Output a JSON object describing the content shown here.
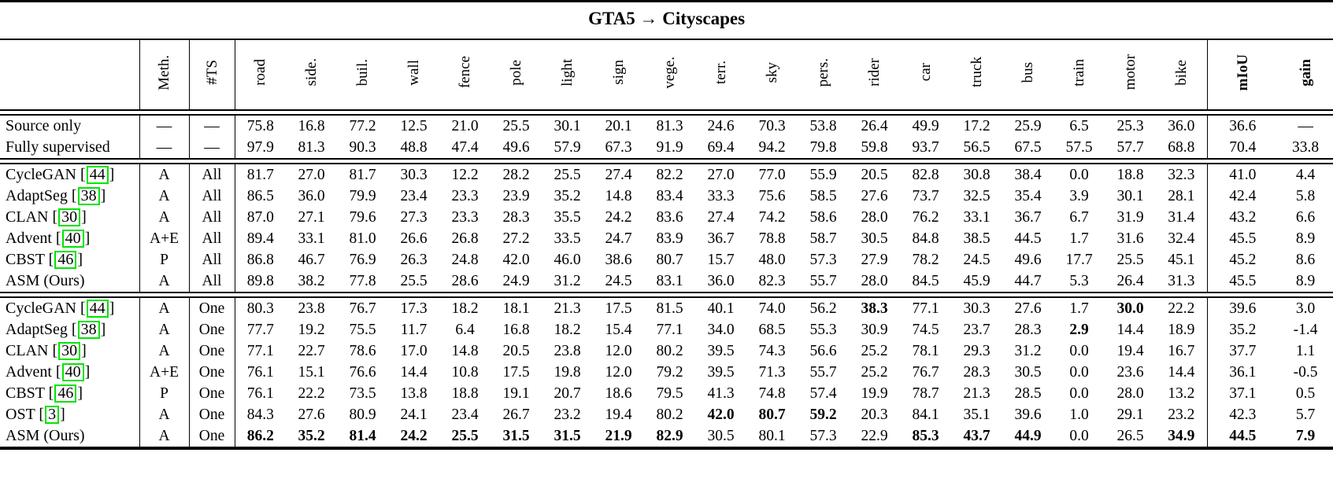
{
  "table": {
    "title": "GTA5 → Cityscapes",
    "accent_colors": {
      "citation_box_border": "#00e400",
      "text": "#000000",
      "background": "#ffffff"
    },
    "columns": {
      "method_header": "",
      "meth": "Meth.",
      "ts": "#TS",
      "classes": [
        "road",
        "side.",
        "buil.",
        "wall",
        "fence",
        "pole",
        "light",
        "sign",
        "vege.",
        "terr.",
        "sky",
        "pers.",
        "rider",
        "car",
        "truck",
        "bus",
        "train",
        "motor",
        "bike"
      ],
      "miou": "mIoU",
      "gain": "gain"
    },
    "blocks": [
      {
        "rows": [
          {
            "method": "Source only",
            "citation": null,
            "meth": "—",
            "ts": "—",
            "values": [
              "75.8",
              "16.8",
              "77.2",
              "12.5",
              "21.0",
              "25.5",
              "30.1",
              "20.1",
              "81.3",
              "24.6",
              "70.3",
              "53.8",
              "26.4",
              "49.9",
              "17.2",
              "25.9",
              "6.5",
              "25.3",
              "36.0"
            ],
            "miou": "36.6",
            "gain": "—",
            "bold": [],
            "bold_miou": false,
            "bold_gain": false
          },
          {
            "method": "Fully supervised",
            "citation": null,
            "meth": "—",
            "ts": "—",
            "values": [
              "97.9",
              "81.3",
              "90.3",
              "48.8",
              "47.4",
              "49.6",
              "57.9",
              "67.3",
              "91.9",
              "69.4",
              "94.2",
              "79.8",
              "59.8",
              "93.7",
              "56.5",
              "67.5",
              "57.5",
              "57.7",
              "68.8"
            ],
            "miou": "70.4",
            "gain": "33.8",
            "bold": [],
            "bold_miou": false,
            "bold_gain": false
          }
        ]
      },
      {
        "rows": [
          {
            "method": "CycleGAN",
            "citation": "44",
            "meth": "A",
            "ts": "All",
            "values": [
              "81.7",
              "27.0",
              "81.7",
              "30.3",
              "12.2",
              "28.2",
              "25.5",
              "27.4",
              "82.2",
              "27.0",
              "77.0",
              "55.9",
              "20.5",
              "82.8",
              "30.8",
              "38.4",
              "0.0",
              "18.8",
              "32.3"
            ],
            "miou": "41.0",
            "gain": "4.4",
            "bold": [],
            "bold_miou": false,
            "bold_gain": false
          },
          {
            "method": "AdaptSeg",
            "citation": "38",
            "meth": "A",
            "ts": "All",
            "values": [
              "86.5",
              "36.0",
              "79.9",
              "23.4",
              "23.3",
              "23.9",
              "35.2",
              "14.8",
              "83.4",
              "33.3",
              "75.6",
              "58.5",
              "27.6",
              "73.7",
              "32.5",
              "35.4",
              "3.9",
              "30.1",
              "28.1"
            ],
            "miou": "42.4",
            "gain": "5.8",
            "bold": [],
            "bold_miou": false,
            "bold_gain": false
          },
          {
            "method": "CLAN",
            "citation": "30",
            "meth": "A",
            "ts": "All",
            "values": [
              "87.0",
              "27.1",
              "79.6",
              "27.3",
              "23.3",
              "28.3",
              "35.5",
              "24.2",
              "83.6",
              "27.4",
              "74.2",
              "58.6",
              "28.0",
              "76.2",
              "33.1",
              "36.7",
              "6.7",
              "31.9",
              "31.4"
            ],
            "miou": "43.2",
            "gain": "6.6",
            "bold": [],
            "bold_miou": false,
            "bold_gain": false
          },
          {
            "method": "Advent",
            "citation": "40",
            "meth": "A+E",
            "ts": "All",
            "values": [
              "89.4",
              "33.1",
              "81.0",
              "26.6",
              "26.8",
              "27.2",
              "33.5",
              "24.7",
              "83.9",
              "36.7",
              "78.8",
              "58.7",
              "30.5",
              "84.8",
              "38.5",
              "44.5",
              "1.7",
              "31.6",
              "32.4"
            ],
            "miou": "45.5",
            "gain": "8.9",
            "bold": [],
            "bold_miou": false,
            "bold_gain": false
          },
          {
            "method": "CBST",
            "citation": "46",
            "meth": "P",
            "ts": "All",
            "values": [
              "86.8",
              "46.7",
              "76.9",
              "26.3",
              "24.8",
              "42.0",
              "46.0",
              "38.6",
              "80.7",
              "15.7",
              "48.0",
              "57.3",
              "27.9",
              "78.2",
              "24.5",
              "49.6",
              "17.7",
              "25.5",
              "45.1"
            ],
            "miou": "45.2",
            "gain": "8.6",
            "bold": [],
            "bold_miou": false,
            "bold_gain": false
          },
          {
            "method": "ASM (Ours)",
            "citation": null,
            "meth": "A",
            "ts": "All",
            "values": [
              "89.8",
              "38.2",
              "77.8",
              "25.5",
              "28.6",
              "24.9",
              "31.2",
              "24.5",
              "83.1",
              "36.0",
              "82.3",
              "55.7",
              "28.0",
              "84.5",
              "45.9",
              "44.7",
              "5.3",
              "26.4",
              "31.3"
            ],
            "miou": "45.5",
            "gain": "8.9",
            "bold": [],
            "bold_miou": false,
            "bold_gain": false
          }
        ]
      },
      {
        "rows": [
          {
            "method": "CycleGAN",
            "citation": "44",
            "meth": "A",
            "ts": "One",
            "values": [
              "80.3",
              "23.8",
              "76.7",
              "17.3",
              "18.2",
              "18.1",
              "21.3",
              "17.5",
              "81.5",
              "40.1",
              "74.0",
              "56.2",
              "38.3",
              "77.1",
              "30.3",
              "27.6",
              "1.7",
              "30.0",
              "22.2"
            ],
            "miou": "39.6",
            "gain": "3.0",
            "bold": [
              12,
              17
            ],
            "bold_miou": false,
            "bold_gain": false
          },
          {
            "method": "AdaptSeg",
            "citation": "38",
            "meth": "A",
            "ts": "One",
            "values": [
              "77.7",
              "19.2",
              "75.5",
              "11.7",
              "6.4",
              "16.8",
              "18.2",
              "15.4",
              "77.1",
              "34.0",
              "68.5",
              "55.3",
              "30.9",
              "74.5",
              "23.7",
              "28.3",
              "2.9",
              "14.4",
              "18.9"
            ],
            "miou": "35.2",
            "gain": "-1.4",
            "bold": [
              16
            ],
            "bold_miou": false,
            "bold_gain": false
          },
          {
            "method": "CLAN",
            "citation": "30",
            "meth": "A",
            "ts": "One",
            "values": [
              "77.1",
              "22.7",
              "78.6",
              "17.0",
              "14.8",
              "20.5",
              "23.8",
              "12.0",
              "80.2",
              "39.5",
              "74.3",
              "56.6",
              "25.2",
              "78.1",
              "29.3",
              "31.2",
              "0.0",
              "19.4",
              "16.7"
            ],
            "miou": "37.7",
            "gain": "1.1",
            "bold": [],
            "bold_miou": false,
            "bold_gain": false
          },
          {
            "method": "Advent",
            "citation": "40",
            "meth": "A+E",
            "ts": "One",
            "values": [
              "76.1",
              "15.1",
              "76.6",
              "14.4",
              "10.8",
              "17.5",
              "19.8",
              "12.0",
              "79.2",
              "39.5",
              "71.3",
              "55.7",
              "25.2",
              "76.7",
              "28.3",
              "30.5",
              "0.0",
              "23.6",
              "14.4"
            ],
            "miou": "36.1",
            "gain": "-0.5",
            "bold": [],
            "bold_miou": false,
            "bold_gain": false
          },
          {
            "method": "CBST",
            "citation": "46",
            "meth": "P",
            "ts": "One",
            "values": [
              "76.1",
              "22.2",
              "73.5",
              "13.8",
              "18.8",
              "19.1",
              "20.7",
              "18.6",
              "79.5",
              "41.3",
              "74.8",
              "57.4",
              "19.9",
              "78.7",
              "21.3",
              "28.5",
              "0.0",
              "28.0",
              "13.2"
            ],
            "miou": "37.1",
            "gain": "0.5",
            "bold": [],
            "bold_miou": false,
            "bold_gain": false
          },
          {
            "method": "OST",
            "citation": "3",
            "meth": "A",
            "ts": "One",
            "values": [
              "84.3",
              "27.6",
              "80.9",
              "24.1",
              "23.4",
              "26.7",
              "23.2",
              "19.4",
              "80.2",
              "42.0",
              "80.7",
              "59.2",
              "20.3",
              "84.1",
              "35.1",
              "39.6",
              "1.0",
              "29.1",
              "23.2"
            ],
            "miou": "42.3",
            "gain": "5.7",
            "bold": [
              9,
              10,
              11
            ],
            "bold_miou": false,
            "bold_gain": false
          },
          {
            "method": "ASM (Ours)",
            "citation": null,
            "meth": "A",
            "ts": "One",
            "values": [
              "86.2",
              "35.2",
              "81.4",
              "24.2",
              "25.5",
              "31.5",
              "31.5",
              "21.9",
              "82.9",
              "30.5",
              "80.1",
              "57.3",
              "22.9",
              "85.3",
              "43.7",
              "44.9",
              "0.0",
              "26.5",
              "34.9"
            ],
            "miou": "44.5",
            "gain": "7.9",
            "bold": [
              0,
              1,
              2,
              3,
              4,
              5,
              6,
              7,
              8,
              13,
              14,
              15,
              18
            ],
            "bold_miou": true,
            "bold_gain": true
          }
        ]
      }
    ]
  }
}
